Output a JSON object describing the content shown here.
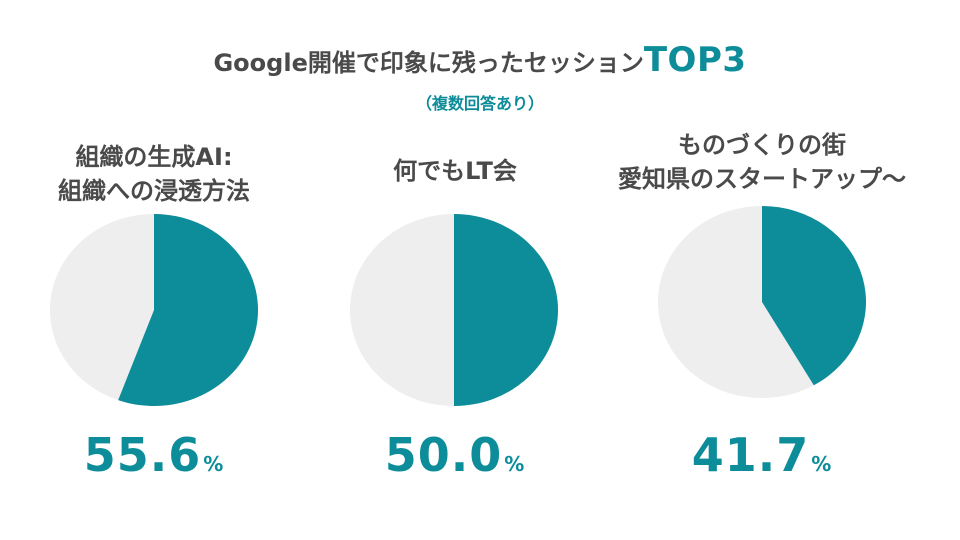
{
  "header": {
    "title_main": "Google開催で印象に残ったセッション",
    "title_accent": "TOP3",
    "subtitle": "（複数回答あり）"
  },
  "chart_data": [
    {
      "type": "pie",
      "label_lines": [
        "組織の生成AI:",
        "組織への浸透方法"
      ],
      "value": 55.6,
      "value_text": "55.6",
      "unit": "%"
    },
    {
      "type": "pie",
      "label_lines": [
        "何でもLT会"
      ],
      "value": 50.0,
      "value_text": "50.0",
      "unit": "%"
    },
    {
      "type": "pie",
      "label_lines": [
        "ものづくりの街",
        "愛知県のスタートアップ〜"
      ],
      "value": 41.7,
      "value_text": "41.7",
      "unit": "%"
    }
  ],
  "colors": {
    "accent": "#0d8c99",
    "remainder": "#eeeeee",
    "text": "#4a4a4a"
  }
}
